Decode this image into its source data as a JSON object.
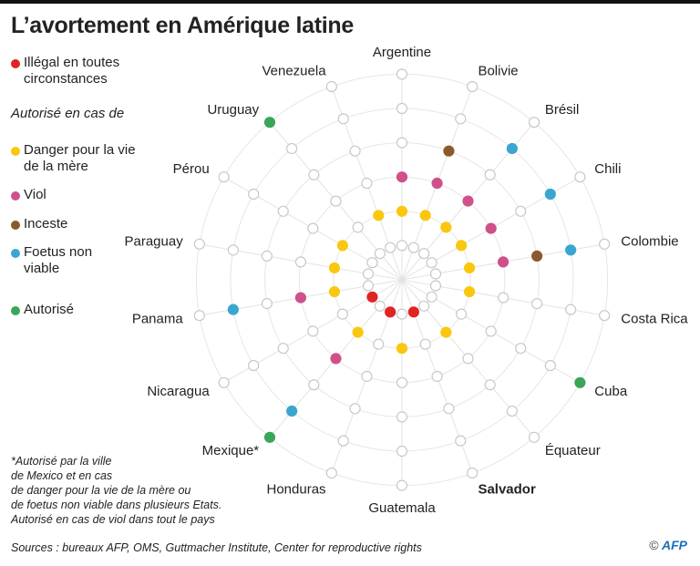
{
  "title": "L’avortement en Amérique latine",
  "legend": {
    "illegal": "Illégal en toutes circonstances",
    "subheading": "Autorisé en cas de",
    "danger": "Danger pour la vie de la mère",
    "viol": "Viol",
    "inceste": "Inceste",
    "foetus": "Foetus non viable",
    "autorise": "Autorisé"
  },
  "colors": {
    "illegal": "#e02424",
    "danger": "#f9c80e",
    "viol": "#d0508a",
    "inceste": "#8b5a2b",
    "foetus": "#3aa6d0",
    "autorise": "#3aa657",
    "empty": "#ffffff",
    "grid": "#dddddd"
  },
  "chart_data": {
    "type": "radial-dot",
    "rings": [
      "illegal",
      "danger",
      "viol",
      "inceste",
      "foetus",
      "autorise"
    ],
    "countries": [
      {
        "name": "Argentine",
        "status": [
          "danger",
          "viol"
        ]
      },
      {
        "name": "Bolivie",
        "status": [
          "danger",
          "viol",
          "inceste"
        ]
      },
      {
        "name": "Brésil",
        "status": [
          "danger",
          "viol",
          "foetus"
        ]
      },
      {
        "name": "Chili",
        "status": [
          "danger",
          "viol",
          "foetus"
        ]
      },
      {
        "name": "Colombie",
        "status": [
          "danger",
          "viol",
          "inceste",
          "foetus"
        ]
      },
      {
        "name": "Costa Rica",
        "status": [
          "danger"
        ]
      },
      {
        "name": "Cuba",
        "status": [
          "autorise"
        ]
      },
      {
        "name": "Équateur",
        "status": [
          "danger"
        ]
      },
      {
        "name": "Salvador",
        "status": [
          "illegal"
        ],
        "bold": true
      },
      {
        "name": "Guatemala",
        "status": [
          "danger"
        ]
      },
      {
        "name": "Honduras",
        "status": [
          "illegal"
        ]
      },
      {
        "name": "Mexique*",
        "status": [
          "danger",
          "viol",
          "foetus",
          "autorise"
        ]
      },
      {
        "name": "Nicaragua",
        "status": [
          "illegal"
        ]
      },
      {
        "name": "Panama",
        "status": [
          "danger",
          "viol",
          "foetus"
        ]
      },
      {
        "name": "Paraguay",
        "status": [
          "danger"
        ]
      },
      {
        "name": "Pérou",
        "status": [
          "danger"
        ]
      },
      {
        "name": "Uruguay",
        "status": [
          "autorise"
        ]
      },
      {
        "name": "Venezuela",
        "status": [
          "danger"
        ]
      }
    ]
  },
  "footnote": [
    "*Autorisé par la ville",
    "de Mexico et en cas",
    "de danger pour la vie de la mère ou",
    "de foetus non viable dans plusieurs Etats.",
    "Autorisé en cas de viol dans tout le pays"
  ],
  "sources": "Sources  : bureaux AFP, OMS, Guttmacher Institute, Center for reproductive rights",
  "copyright": {
    "symbol": "©",
    "brand": "AFP"
  }
}
